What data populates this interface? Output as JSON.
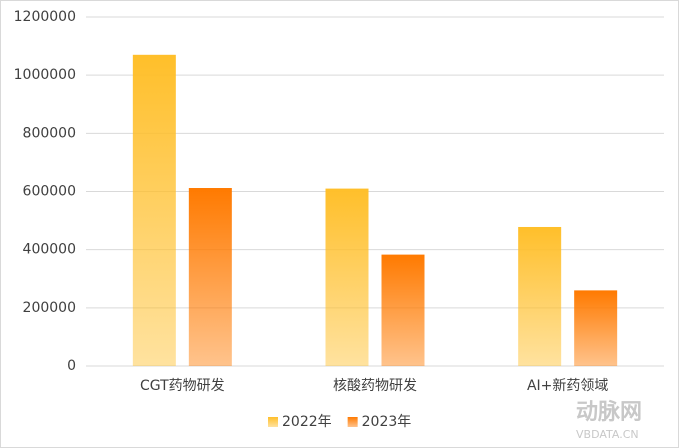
{
  "chart_data": {
    "type": "bar",
    "categories": [
      "CGT药物研发",
      "核酸药物研发",
      "AI+新药领域"
    ],
    "series": [
      {
        "name": "2022年",
        "color": "#ffbf2a",
        "values": [
          1070000,
          610000,
          478000
        ]
      },
      {
        "name": "2023年",
        "color": "#ff7a00",
        "values": [
          612000,
          383000,
          260000
        ]
      }
    ],
    "ylim": [
      0,
      1200000
    ],
    "yticks": [
      0,
      200000,
      400000,
      600000,
      800000,
      1000000,
      1200000
    ],
    "grid": true,
    "legend": "bottom",
    "watermark": {
      "name": "动脉网",
      "url": "VBDATA.CN"
    }
  }
}
